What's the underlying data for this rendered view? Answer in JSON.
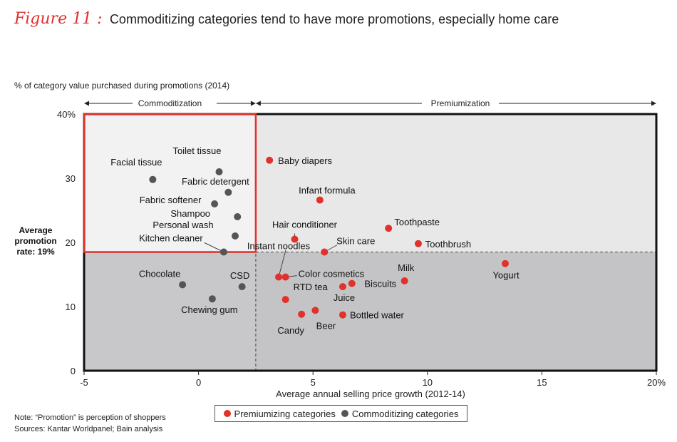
{
  "figure": {
    "label": "Figure 11 :",
    "title": "Commoditizing categories tend to have more promotions, especially home care"
  },
  "notes": {
    "note": "Note: “Promotion” is perception of shoppers",
    "sources": "Sources: Kantar Worldpanel; Bain analysis"
  },
  "legend": {
    "premiumizing_label": "Premiumizing categories",
    "commoditizing_label": "Commoditizing categories"
  },
  "colors": {
    "premiumizing": "#e0312b",
    "commoditizing": "#555555",
    "commod_box": "#e0312b",
    "upper_bg": "#e8e8e9",
    "lower_bg": "#c4c4c6"
  },
  "chart_data": {
    "type": "scatter",
    "title": "Commoditizing categories tend to have more promotions, especially home care",
    "xlabel": "Average annual selling price growth (2012-14)",
    "ylabel_top": "% of category value purchased during promotions (2014)",
    "ylabel_side": [
      "Average",
      "promotion",
      "rate: 19%"
    ],
    "xlim": [
      -5,
      20
    ],
    "ylim": [
      0,
      40
    ],
    "x_ticks": [
      -5,
      0,
      5,
      10,
      15,
      20
    ],
    "x_tick_labels": [
      "-5",
      "0",
      "5",
      "10",
      "15",
      "20%"
    ],
    "y_ticks": [
      0,
      10,
      20,
      30,
      40
    ],
    "y_tick_labels": [
      "0",
      "10",
      "20",
      "30",
      "40%"
    ],
    "average_promotion_rate": 18.5,
    "divider_x": 2.5,
    "regions": {
      "commoditization": "Commoditization",
      "premiumization": "Premiumization"
    },
    "series": [
      {
        "name": "Commoditizing categories",
        "points": [
          {
            "label": "Facial tissue",
            "x": -2.0,
            "y": 29.8
          },
          {
            "label": "Toilet tissue",
            "x": 0.9,
            "y": 31.0
          },
          {
            "label": "Fabric detergent",
            "x": 1.3,
            "y": 27.8
          },
          {
            "label": "Fabric softener",
            "x": 0.7,
            "y": 26.0
          },
          {
            "label": "Shampoo",
            "x": 1.7,
            "y": 24.0
          },
          {
            "label": "Personal wash",
            "x": 1.6,
            "y": 21.0
          },
          {
            "label": "Kitchen cleaner",
            "x": 1.1,
            "y": 18.5
          },
          {
            "label": "Chocolate",
            "x": -0.7,
            "y": 13.4
          },
          {
            "label": "CSD",
            "x": 1.9,
            "y": 13.1
          },
          {
            "label": "Chewing gum",
            "x": 0.6,
            "y": 11.2
          }
        ]
      },
      {
        "name": "Premiumizing categories",
        "points": [
          {
            "label": "Baby diapers",
            "x": 3.1,
            "y": 32.8
          },
          {
            "label": "Infant formula",
            "x": 5.3,
            "y": 26.6
          },
          {
            "label": "Toothpaste",
            "x": 8.3,
            "y": 22.2
          },
          {
            "label": "Toothbrush",
            "x": 9.6,
            "y": 19.8
          },
          {
            "label": "Hair conditioner",
            "x": 4.2,
            "y": 20.5
          },
          {
            "label": "Skin care",
            "x": 5.5,
            "y": 18.5
          },
          {
            "label": "Instant noodles",
            "x": 3.5,
            "y": 14.6
          },
          {
            "label": "Color cosmetics",
            "x": 3.8,
            "y": 14.6
          },
          {
            "label": "RTD tea",
            "x": 3.8,
            "y": 11.1
          },
          {
            "label": "Juice",
            "x": 6.3,
            "y": 13.1
          },
          {
            "label": "Biscuits",
            "x": 6.7,
            "y": 13.6
          },
          {
            "label": "Milk",
            "x": 9.0,
            "y": 14.0
          },
          {
            "label": "Yogurt",
            "x": 13.4,
            "y": 16.7
          },
          {
            "label": "Candy",
            "x": 4.5,
            "y": 8.8
          },
          {
            "label": "Beer",
            "x": 5.1,
            "y": 9.4
          },
          {
            "label": "Bottled water",
            "x": 6.3,
            "y": 8.7
          }
        ]
      }
    ]
  }
}
